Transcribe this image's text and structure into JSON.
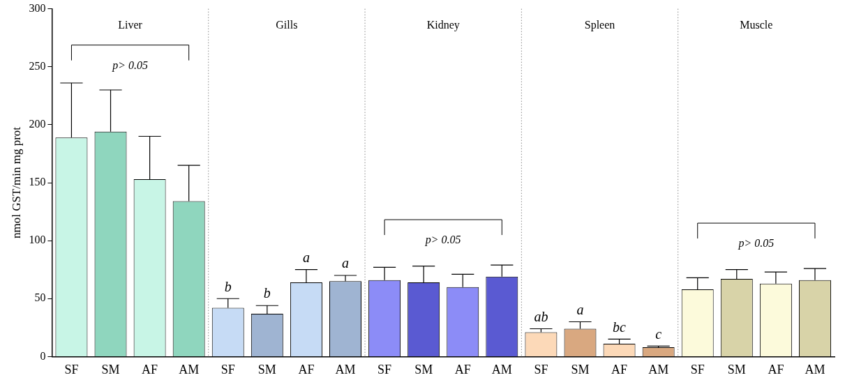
{
  "chart_data": {
    "type": "bar",
    "ylabel": "nmol GST/min mg prot",
    "categories": [
      "SF",
      "SM",
      "AF",
      "AM",
      "SF",
      "SM",
      "AF",
      "AM",
      "SF",
      "SM",
      "AF",
      "AM",
      "SF",
      "SM",
      "AF",
      "AM",
      "SF",
      "SM",
      "AF",
      "AM"
    ],
    "values": [
      189,
      194,
      153,
      134,
      42,
      37,
      64,
      65,
      66,
      64,
      60,
      69,
      21,
      24,
      11,
      8,
      58,
      67,
      63,
      66
    ],
    "colors": [
      "#c8f5e6",
      "#8fd6be",
      "#c8f5e6",
      "#8fd6be",
      "#c6dbf5",
      "#9fb4d2",
      "#c6dbf5",
      "#9fb4d2",
      "#8c8cf7",
      "#5a5ad2",
      "#8c8cf7",
      "#5a5ad2",
      "#fcd9b8",
      "#d9a880",
      "#fcd9b8",
      "#d9a880",
      "#fcfadb",
      "#d8d3a8",
      "#fcfadb",
      "#d8d3a8"
    ],
    "errors": [
      [
        189,
        236
      ],
      [
        194,
        230
      ],
      [
        153,
        190
      ],
      [
        134,
        165
      ],
      [
        42,
        50
      ],
      [
        37,
        44
      ],
      [
        64,
        75
      ],
      [
        65,
        70
      ],
      [
        66,
        77
      ],
      [
        64,
        78
      ],
      [
        60,
        71
      ],
      [
        69,
        79
      ],
      [
        21,
        24
      ],
      [
        24,
        30
      ],
      [
        11,
        15
      ],
      [
        8,
        9
      ],
      [
        58,
        68
      ],
      [
        67,
        75
      ],
      [
        63,
        73
      ],
      [
        66,
        76
      ]
    ],
    "value_labels": [
      null,
      null,
      null,
      null,
      "b",
      "b",
      "a",
      "a",
      null,
      null,
      null,
      null,
      "ab",
      "a",
      "bc",
      "c",
      null,
      null,
      null,
      null
    ],
    "annotations": [
      "Liver",
      "Gills",
      "Kidney",
      "Spleen",
      "Muscle",
      "p> 0.05",
      "p> 0.05",
      "p> 0.05"
    ],
    "ylim": [
      0,
      300
    ],
    "yticks": [
      0,
      50,
      100,
      150,
      200,
      250,
      300
    ],
    "grid": false,
    "legend": false
  }
}
